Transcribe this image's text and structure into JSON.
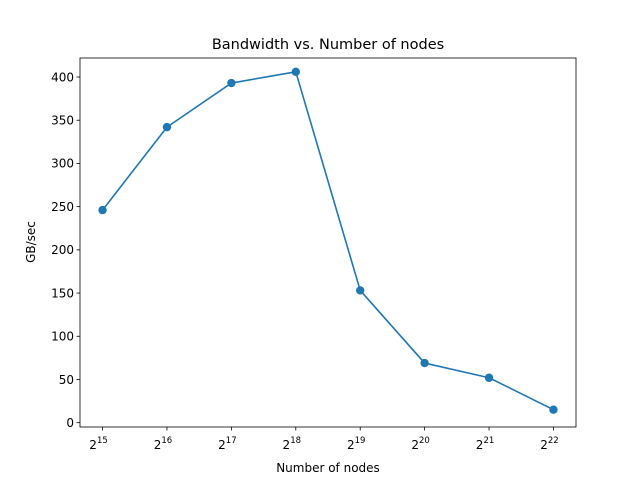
{
  "chart_data": {
    "type": "line",
    "title": "Bandwidth vs. Number of nodes",
    "xlabel": "Number of nodes",
    "ylabel": "GB/sec",
    "x_scale": "log2",
    "x_ticks": [
      {
        "base": "2",
        "exp": "15"
      },
      {
        "base": "2",
        "exp": "16"
      },
      {
        "base": "2",
        "exp": "17"
      },
      {
        "base": "2",
        "exp": "18"
      },
      {
        "base": "2",
        "exp": "19"
      },
      {
        "base": "2",
        "exp": "20"
      },
      {
        "base": "2",
        "exp": "21"
      },
      {
        "base": "2",
        "exp": "22"
      }
    ],
    "y_ticks": [
      "0",
      "50",
      "100",
      "150",
      "200",
      "250",
      "300",
      "350",
      "400"
    ],
    "ylim": [
      -5,
      422
    ],
    "grid": false,
    "color": "#1f77b4",
    "series": [
      {
        "x": [
          32768,
          65536,
          131072,
          262144,
          524288,
          1048576,
          2097152,
          4194304
        ],
        "values": [
          246,
          342,
          393,
          406,
          153,
          69,
          52,
          15
        ],
        "marker": "circle"
      }
    ]
  }
}
